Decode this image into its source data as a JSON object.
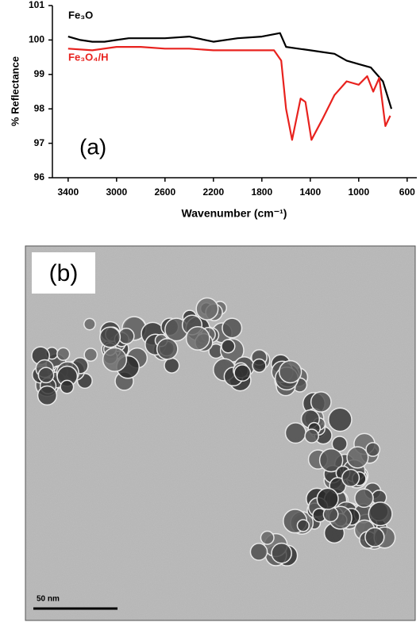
{
  "chart_data": {
    "type": "line",
    "xlabel": "Wavenumber (cm⁻¹)",
    "ylabel": "% Reflectance",
    "annotation": "(a)",
    "xlim": [
      3530,
      520
    ],
    "xticks": [
      3400,
      3000,
      2600,
      2200,
      1800,
      1400,
      1000,
      600
    ],
    "ylim": [
      96,
      101
    ],
    "yticks": [
      96,
      97,
      98,
      99,
      100,
      101
    ],
    "series": [
      {
        "name": "Fe₃O",
        "color": "#000000",
        "x": [
          3400,
          3300,
          3200,
          3100,
          3000,
          2900,
          2800,
          2600,
          2400,
          2200,
          2000,
          1800,
          1650,
          1600,
          1500,
          1400,
          1300,
          1200,
          1100,
          1000,
          900,
          800,
          730
        ],
        "values": [
          100.1,
          100.0,
          99.95,
          99.95,
          100.0,
          100.05,
          100.05,
          100.05,
          100.1,
          99.95,
          100.05,
          100.1,
          100.2,
          99.8,
          99.75,
          99.7,
          99.65,
          99.6,
          99.4,
          99.3,
          99.2,
          98.8,
          98.0
        ]
      },
      {
        "name": "Fe₃O₄/H",
        "color": "#e8221e",
        "x": [
          3400,
          3200,
          3000,
          2800,
          2600,
          2400,
          2200,
          2000,
          1800,
          1700,
          1640,
          1600,
          1550,
          1480,
          1440,
          1390,
          1300,
          1200,
          1100,
          1000,
          930,
          880,
          830,
          780,
          740
        ],
        "values": [
          99.75,
          99.7,
          99.8,
          99.8,
          99.75,
          99.75,
          99.7,
          99.7,
          99.7,
          99.7,
          99.4,
          98.0,
          97.1,
          98.3,
          98.2,
          97.1,
          97.7,
          98.4,
          98.8,
          98.7,
          98.95,
          98.5,
          98.9,
          97.5,
          97.8
        ]
      }
    ]
  },
  "image": {
    "label": "(b)",
    "scale_bar": "50 nm"
  }
}
